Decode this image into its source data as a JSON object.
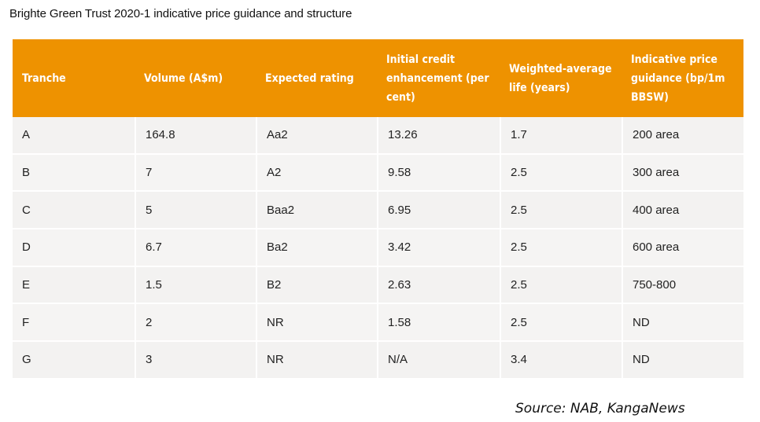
{
  "title": "Brighte Green Trust 2020-1 indicative price guidance and structure",
  "table": {
    "headers": [
      "Tranche",
      "Volume (A$m)",
      "Expected rating",
      "Initial credit enhancement (per cent)",
      "Weighted-average life (years)",
      "Indicative price guidance (bp/1m BBSW)"
    ],
    "rows": [
      [
        "A",
        "164.8",
        "Aa2",
        "13.26",
        "1.7",
        "200 area"
      ],
      [
        "B",
        "7",
        "A2",
        "9.58",
        "2.5",
        "300 area"
      ],
      [
        "C",
        "5",
        "Baa2",
        "6.95",
        "2.5",
        "400 area"
      ],
      [
        "D",
        "6.7",
        "Ba2",
        "3.42",
        "2.5",
        "600 area"
      ],
      [
        "E",
        "1.5",
        "B2",
        "2.63",
        "2.5",
        "750-800"
      ],
      [
        "F",
        "2",
        "NR",
        "1.58",
        "2.5",
        "ND"
      ],
      [
        "G",
        "3",
        "NR",
        "N/A",
        "3.4",
        "ND"
      ]
    ]
  },
  "source": "Source: NAB, KangaNews",
  "colors": {
    "header_bg": "#ee9200",
    "header_text": "#ffffff",
    "row_bg": "#f3f2f1"
  }
}
